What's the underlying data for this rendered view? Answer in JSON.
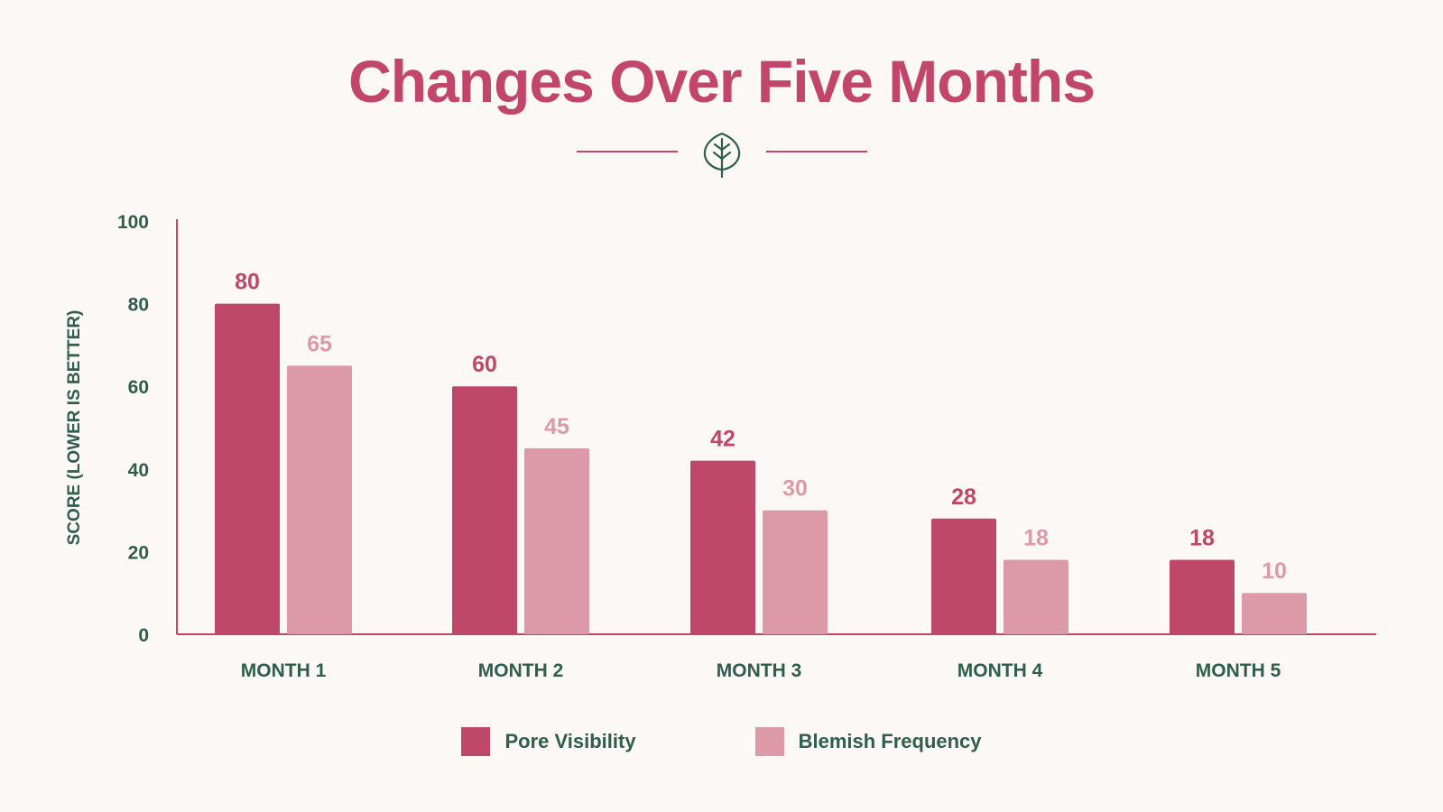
{
  "colors": {
    "background": "#fcf8f5",
    "title": "#c2456b",
    "text": "#2f5d4f",
    "axis": "#c2456b",
    "pore": "#bf476a",
    "blemish": "#dc9aa8"
  },
  "divider": {
    "icon": "leaf-icon"
  },
  "chart_data": {
    "type": "bar",
    "title": "Changes Over Five Months",
    "ylabel": "SCORE (LOWER IS BETTER)",
    "xlabel": "",
    "ylim": [
      0,
      100
    ],
    "yticks": [
      0,
      20,
      40,
      60,
      80,
      100
    ],
    "grid": false,
    "legend_position": "bottom-center",
    "categories": [
      "MONTH 1",
      "MONTH 2",
      "MONTH 3",
      "MONTH 4",
      "MONTH 5"
    ],
    "series": [
      {
        "name": "Pore Visibility",
        "values": [
          80,
          60,
          42,
          28,
          18
        ]
      },
      {
        "name": "Blemish Frequency",
        "values": [
          65,
          45,
          30,
          18,
          10
        ]
      }
    ]
  }
}
